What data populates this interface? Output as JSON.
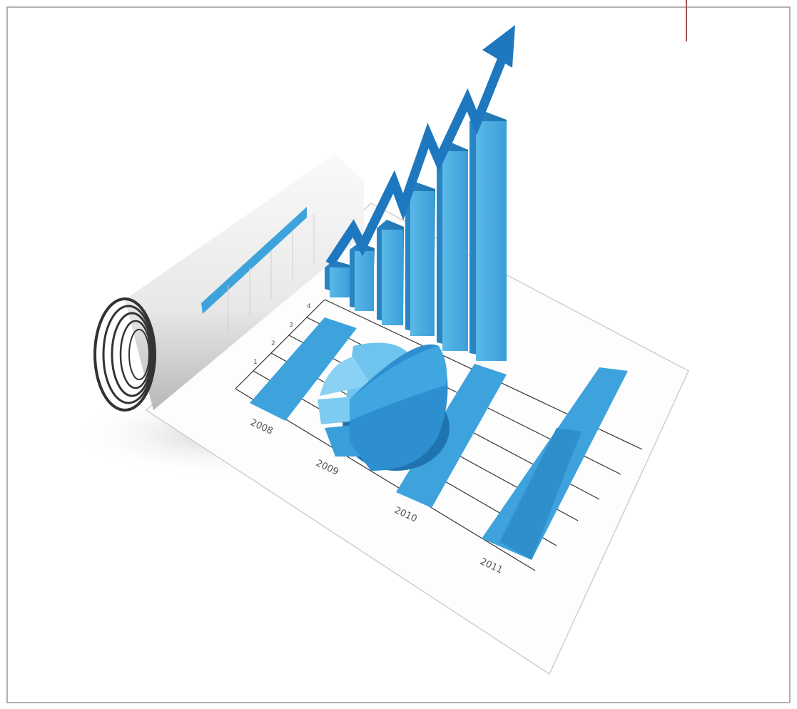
{
  "illustration": {
    "year_labels": [
      "2008",
      "2009",
      "2010",
      "2011"
    ],
    "axis_labels": [
      "4",
      "3",
      "2",
      "1"
    ]
  }
}
